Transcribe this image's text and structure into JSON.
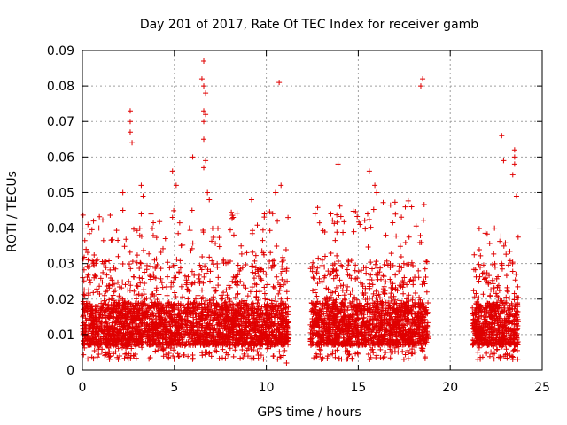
{
  "chart_data": {
    "type": "scatter",
    "title": "Day 201 of 2017, Rate Of TEC Index for receiver gamb",
    "xlabel": "GPS time / hours",
    "ylabel": "ROTI / TECUs",
    "xlim": [
      0,
      25
    ],
    "ylim": [
      0,
      0.09
    ],
    "x_ticks": [
      "0",
      "5",
      "10",
      "15",
      "20",
      "25"
    ],
    "x_tick_values": [
      0,
      5,
      10,
      15,
      20,
      25
    ],
    "y_ticks": [
      "0",
      "0.01",
      "0.02",
      "0.03",
      "0.04",
      "0.05",
      "0.06",
      "0.07",
      "0.08",
      "0.09"
    ],
    "y_tick_values": [
      0,
      0.01,
      0.02,
      0.03,
      0.04,
      0.05,
      0.06,
      0.07,
      0.08,
      0.09
    ],
    "grid": true,
    "marker": "+",
    "color": "#e00000",
    "series": [
      {
        "name": "ROTI",
        "segments": [
          {
            "x_start": 0.0,
            "x_end": 11.2,
            "typical_min": 0.003,
            "typical_max": 0.045
          },
          {
            "x_start": 12.4,
            "x_end": 18.8,
            "typical_min": 0.003,
            "typical_max": 0.048
          },
          {
            "x_start": 21.2,
            "x_end": 23.7,
            "typical_min": 0.003,
            "typical_max": 0.04
          }
        ],
        "points": [
          [
            0.1,
            0.012
          ],
          [
            0.2,
            0.034
          ],
          [
            0.3,
            0.041
          ],
          [
            0.5,
            0.008
          ],
          [
            0.9,
            0.04
          ],
          [
            1.2,
            0.021
          ],
          [
            2.2,
            0.05
          ],
          [
            2.2,
            0.045
          ],
          [
            2.6,
            0.073
          ],
          [
            2.6,
            0.07
          ],
          [
            2.6,
            0.067
          ],
          [
            2.7,
            0.064
          ],
          [
            3.2,
            0.052
          ],
          [
            3.3,
            0.049
          ],
          [
            3.2,
            0.044
          ],
          [
            4.9,
            0.056
          ],
          [
            4.9,
            0.043
          ],
          [
            5.1,
            0.052
          ],
          [
            6.0,
            0.06
          ],
          [
            6.5,
            0.082
          ],
          [
            6.6,
            0.087
          ],
          [
            6.6,
            0.08
          ],
          [
            6.7,
            0.078
          ],
          [
            6.6,
            0.073
          ],
          [
            6.6,
            0.07
          ],
          [
            6.7,
            0.072
          ],
          [
            6.6,
            0.065
          ],
          [
            6.7,
            0.059
          ],
          [
            6.6,
            0.057
          ],
          [
            6.8,
            0.05
          ],
          [
            6.9,
            0.048
          ],
          [
            8.2,
            0.043
          ],
          [
            9.2,
            0.048
          ],
          [
            9.9,
            0.044
          ],
          [
            10.5,
            0.05
          ],
          [
            10.7,
            0.081
          ],
          [
            10.8,
            0.052
          ],
          [
            11.1,
            0.002
          ],
          [
            13.9,
            0.058
          ],
          [
            15.6,
            0.056
          ],
          [
            15.9,
            0.052
          ],
          [
            16.0,
            0.05
          ],
          [
            18.4,
            0.08
          ],
          [
            18.5,
            0.082
          ],
          [
            17.9,
            0.046
          ],
          [
            22.8,
            0.066
          ],
          [
            22.9,
            0.059
          ],
          [
            23.5,
            0.062
          ],
          [
            23.5,
            0.06
          ],
          [
            23.5,
            0.058
          ],
          [
            23.4,
            0.055
          ],
          [
            23.6,
            0.049
          ],
          [
            23.4,
            0.003
          ]
        ]
      }
    ]
  }
}
